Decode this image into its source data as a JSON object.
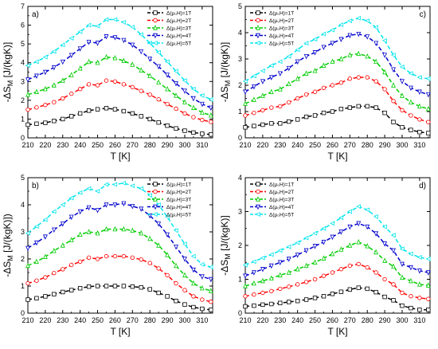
{
  "chart_data": [
    {
      "panel_label": "a)",
      "type": "line",
      "xlabel": "T [K]",
      "ylabel": "-ΔS_M [J/(kgK)]",
      "xlim": [
        210,
        316
      ],
      "ylim": [
        0,
        7
      ],
      "xticks": [
        210,
        220,
        230,
        240,
        250,
        260,
        270,
        280,
        290,
        300,
        310
      ],
      "yticks": [
        0,
        1,
        2,
        3,
        4,
        5,
        6,
        7
      ],
      "legend_position": "top-right",
      "x": [
        210,
        215,
        220,
        225,
        230,
        235,
        240,
        245,
        250,
        255,
        260,
        265,
        270,
        275,
        280,
        285,
        290,
        295,
        300,
        305,
        310,
        315
      ],
      "series": [
        {
          "name": "Δ(μ₀H)=1T",
          "color": "#000000",
          "values": [
            0.7,
            0.75,
            0.8,
            0.9,
            1.0,
            1.15,
            1.3,
            1.45,
            1.52,
            1.58,
            1.52,
            1.42,
            1.3,
            1.15,
            1.0,
            0.82,
            0.65,
            0.5,
            0.38,
            0.28,
            0.22,
            0.18
          ]
        },
        {
          "name": "Δ(μ₀H)=2T",
          "color": "#ff0000",
          "values": [
            1.5,
            1.62,
            1.75,
            1.9,
            2.1,
            2.35,
            2.6,
            2.85,
            2.8,
            3.05,
            3.0,
            2.85,
            2.7,
            2.5,
            2.3,
            2.05,
            1.8,
            1.55,
            1.3,
            1.1,
            0.95,
            0.85
          ]
        },
        {
          "name": "Δ(μ₀H)=3T",
          "color": "#00cc00",
          "values": [
            2.3,
            2.45,
            2.6,
            2.8,
            3.05,
            3.35,
            3.7,
            4.05,
            4.0,
            4.3,
            4.25,
            4.1,
            3.9,
            3.6,
            3.3,
            2.95,
            2.6,
            2.25,
            1.9,
            1.6,
            1.35,
            1.2
          ]
        },
        {
          "name": "Δ(μ₀H)=4T",
          "color": "#0000cc",
          "values": [
            3.1,
            3.3,
            3.5,
            3.75,
            4.05,
            4.4,
            4.75,
            5.1,
            5.05,
            5.4,
            5.35,
            5.2,
            4.95,
            4.6,
            4.2,
            3.8,
            3.35,
            2.9,
            2.5,
            2.1,
            1.8,
            1.6
          ]
        },
        {
          "name": "Δ(μ₀H)=5T",
          "color": "#00e5ee",
          "values": [
            3.85,
            4.05,
            4.3,
            4.6,
            4.95,
            5.3,
            5.65,
            6.0,
            5.95,
            6.3,
            6.3,
            6.15,
            5.9,
            5.5,
            5.05,
            4.55,
            4.05,
            3.55,
            3.05,
            2.6,
            2.25,
            2.05
          ]
        }
      ]
    },
    {
      "panel_label": "c)",
      "type": "line",
      "xlabel": "T [K]",
      "ylabel": "-ΔS_M [J/(kgK)]",
      "xlim": [
        210,
        316
      ],
      "ylim": [
        0,
        5
      ],
      "xticks": [
        210,
        220,
        230,
        240,
        250,
        260,
        270,
        280,
        290,
        300,
        310
      ],
      "yticks": [
        0,
        1,
        2,
        3,
        4,
        5
      ],
      "legend_position": "top-left",
      "x": [
        210,
        215,
        220,
        225,
        230,
        235,
        240,
        245,
        250,
        255,
        260,
        265,
        270,
        275,
        280,
        285,
        290,
        295,
        300,
        305,
        310,
        315
      ],
      "series": [
        {
          "name": "Δ(μ₀H)=1T",
          "color": "#000000",
          "values": [
            0.4,
            0.45,
            0.5,
            0.55,
            0.55,
            0.62,
            0.7,
            0.8,
            0.85,
            0.95,
            1.0,
            1.1,
            1.15,
            1.2,
            1.2,
            1.15,
            0.95,
            0.6,
            0.4,
            0.3,
            0.22,
            0.18
          ]
        },
        {
          "name": "Δ(μ₀H)=2T",
          "color": "#ff0000",
          "values": [
            0.85,
            0.95,
            1.05,
            1.15,
            1.2,
            1.35,
            1.5,
            1.65,
            1.75,
            1.9,
            2.0,
            2.1,
            2.25,
            2.3,
            2.3,
            2.15,
            1.85,
            1.4,
            1.05,
            0.85,
            0.7,
            0.6
          ]
        },
        {
          "name": "Δ(μ₀H)=3T",
          "color": "#00cc00",
          "values": [
            1.3,
            1.45,
            1.6,
            1.75,
            1.85,
            2.05,
            2.25,
            2.45,
            2.55,
            2.75,
            2.9,
            3.0,
            3.15,
            3.2,
            3.1,
            2.9,
            2.5,
            2.0,
            1.6,
            1.35,
            1.2,
            1.1
          ]
        },
        {
          "name": "Δ(μ₀H)=4T",
          "color": "#0000cc",
          "values": [
            1.75,
            1.95,
            2.15,
            2.3,
            2.45,
            2.65,
            2.9,
            3.1,
            3.25,
            3.45,
            3.6,
            3.75,
            3.9,
            3.95,
            3.85,
            3.6,
            3.15,
            2.6,
            2.15,
            1.9,
            1.75,
            1.65
          ]
        },
        {
          "name": "Δ(μ₀H)=5T",
          "color": "#00e5ee",
          "values": [
            2.15,
            2.35,
            2.55,
            2.75,
            2.9,
            3.1,
            3.35,
            3.6,
            3.75,
            3.95,
            4.1,
            4.3,
            4.45,
            4.55,
            4.45,
            4.2,
            3.7,
            3.15,
            2.7,
            2.45,
            2.3,
            2.25
          ]
        }
      ]
    },
    {
      "panel_label": "b)",
      "type": "line",
      "xlabel": "T [K]",
      "ylabel": "-ΔS_M [J/(kgK)])",
      "xlim": [
        210,
        316
      ],
      "ylim": [
        0,
        5
      ],
      "xticks": [
        210,
        220,
        230,
        240,
        250,
        260,
        270,
        280,
        290,
        300,
        310
      ],
      "yticks": [
        0,
        1,
        2,
        3,
        4,
        5
      ],
      "legend_position": "top-right",
      "x": [
        210,
        215,
        220,
        225,
        230,
        235,
        240,
        245,
        250,
        255,
        260,
        265,
        270,
        275,
        280,
        285,
        290,
        295,
        300,
        305,
        310,
        315
      ],
      "series": [
        {
          "name": "Δ(μ₀H)=1T",
          "color": "#000000",
          "values": [
            0.5,
            0.55,
            0.62,
            0.7,
            0.78,
            0.85,
            0.92,
            0.98,
            1.0,
            1.0,
            1.0,
            1.0,
            0.98,
            0.95,
            0.88,
            0.75,
            0.62,
            0.45,
            0.32,
            0.22,
            0.16,
            0.12
          ]
        },
        {
          "name": "Δ(μ₀H)=2T",
          "color": "#ff0000",
          "values": [
            1.1,
            1.2,
            1.32,
            1.48,
            1.62,
            1.78,
            1.9,
            2.05,
            2.0,
            2.1,
            2.1,
            2.1,
            2.05,
            1.98,
            1.85,
            1.65,
            1.4,
            1.1,
            0.85,
            0.62,
            0.5,
            0.42
          ]
        },
        {
          "name": "Δ(μ₀H)=3T",
          "color": "#00cc00",
          "values": [
            1.75,
            1.9,
            2.08,
            2.3,
            2.5,
            2.7,
            2.9,
            3.0,
            2.95,
            3.1,
            3.1,
            3.1,
            3.05,
            2.95,
            2.75,
            2.5,
            2.15,
            1.75,
            1.4,
            1.1,
            0.92,
            0.82
          ]
        },
        {
          "name": "Δ(μ₀H)=4T",
          "color": "#0000cc",
          "values": [
            2.4,
            2.6,
            2.82,
            3.08,
            3.3,
            3.55,
            3.75,
            3.9,
            3.8,
            4.0,
            4.0,
            4.05,
            3.95,
            3.85,
            3.6,
            3.3,
            2.9,
            2.45,
            2.0,
            1.6,
            1.35,
            1.25
          ]
        },
        {
          "name": "Δ(μ₀H)=5T",
          "color": "#00e5ee",
          "values": [
            2.95,
            3.2,
            3.45,
            3.75,
            4.0,
            4.25,
            4.45,
            4.6,
            4.5,
            4.75,
            4.75,
            4.8,
            4.7,
            4.6,
            4.35,
            4.0,
            3.55,
            3.05,
            2.55,
            2.1,
            1.8,
            1.7
          ]
        }
      ]
    },
    {
      "panel_label": "d)",
      "type": "line",
      "xlabel": "T [K]",
      "ylabel": "-ΔS_M [J/(kgK)]",
      "xlim": [
        210,
        316
      ],
      "ylim": [
        0,
        4
      ],
      "xticks": [
        210,
        220,
        230,
        240,
        250,
        260,
        270,
        280,
        290,
        300,
        310
      ],
      "yticks": [
        0,
        1,
        2,
        3,
        4
      ],
      "legend_position": "top-left",
      "x": [
        210,
        215,
        220,
        225,
        230,
        235,
        240,
        245,
        250,
        255,
        260,
        265,
        270,
        275,
        280,
        285,
        290,
        295,
        300,
        305,
        310,
        315
      ],
      "series": [
        {
          "name": "Δ(μ₀H)=1T",
          "color": "#000000",
          "values": [
            0.2,
            0.22,
            0.25,
            0.27,
            0.3,
            0.33,
            0.36,
            0.4,
            0.45,
            0.5,
            0.57,
            0.63,
            0.7,
            0.75,
            0.72,
            0.62,
            0.48,
            0.38,
            0.22,
            0.15,
            0.1,
            0.1
          ]
        },
        {
          "name": "Δ(μ₀H)=2T",
          "color": "#ff0000",
          "values": [
            0.5,
            0.55,
            0.6,
            0.65,
            0.72,
            0.78,
            0.85,
            0.92,
            1.0,
            1.1,
            1.2,
            1.3,
            1.4,
            1.45,
            1.35,
            1.2,
            1.0,
            0.85,
            0.6,
            0.5,
            0.45,
            0.42
          ]
        },
        {
          "name": "Δ(μ₀H)=3T",
          "color": "#00cc00",
          "values": [
            0.8,
            0.88,
            0.95,
            1.03,
            1.12,
            1.2,
            1.3,
            1.4,
            1.5,
            1.62,
            1.75,
            1.88,
            2.0,
            2.1,
            1.98,
            1.8,
            1.55,
            1.38,
            1.05,
            0.95,
            0.85,
            0.82
          ]
        },
        {
          "name": "Δ(μ₀H)=4T",
          "color": "#0000cc",
          "values": [
            1.1,
            1.2,
            1.3,
            1.4,
            1.5,
            1.6,
            1.72,
            1.85,
            1.98,
            2.1,
            2.25,
            2.4,
            2.55,
            2.65,
            2.55,
            2.35,
            2.05,
            1.85,
            1.45,
            1.35,
            1.25,
            1.2
          ]
        },
        {
          "name": "Δ(μ₀H)=5T",
          "color": "#00e5ee",
          "values": [
            1.42,
            1.52,
            1.63,
            1.73,
            1.85,
            1.96,
            2.08,
            2.22,
            2.36,
            2.5,
            2.65,
            2.82,
            3.0,
            3.15,
            3.05,
            2.85,
            2.55,
            2.3,
            1.9,
            1.75,
            1.65,
            1.6
          ]
        }
      ]
    }
  ]
}
